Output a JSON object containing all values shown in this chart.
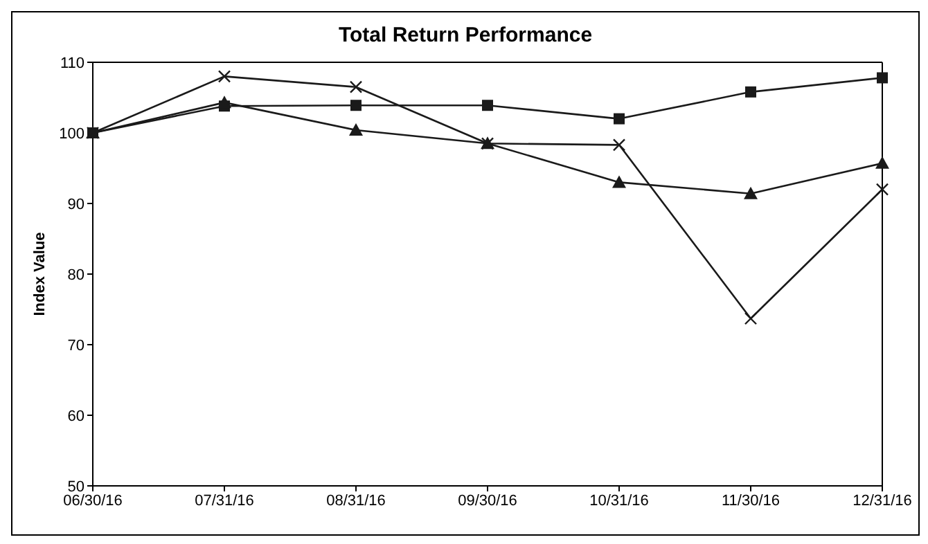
{
  "chart_data": {
    "type": "line",
    "title": "Total Return Performance",
    "ylabel": "Index Value",
    "categories": [
      "06/30/16",
      "07/31/16",
      "08/31/16",
      "09/30/16",
      "10/31/16",
      "11/30/16",
      "12/31/16"
    ],
    "series": [
      {
        "color": "#1a1a1a",
        "marker": "cross",
        "values": [
          100,
          108,
          106.5,
          98.5,
          98.3,
          73.7,
          92
        ]
      },
      {
        "color": "#1a1a1a",
        "marker": "square",
        "values": [
          100,
          103.8,
          103.9,
          103.9,
          102,
          105.8,
          107.8
        ]
      },
      {
        "color": "#1a1a1a",
        "marker": "triangle",
        "values": [
          100,
          104.3,
          100.4,
          98.5,
          93,
          91.4,
          95.7
        ]
      }
    ],
    "ylim": [
      50,
      110
    ],
    "yticks": [
      50,
      60,
      70,
      80,
      90,
      100,
      110
    ],
    "legend": false
  }
}
